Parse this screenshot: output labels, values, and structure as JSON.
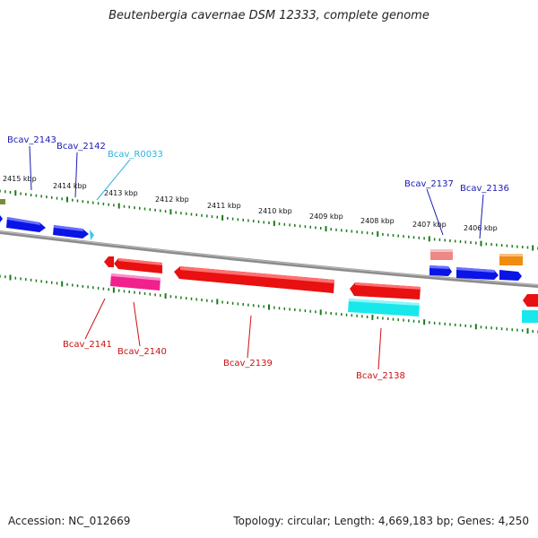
{
  "title": "Beutenbergia cavernae DSM 12333, complete genome",
  "footer": {
    "accession": "Accession: NC_012669",
    "summary": "Topology: circular; Length: 4,669,183 bp; Genes: 4,250"
  },
  "kbp_ticks": [
    "2415 kbp",
    "2414 kbp",
    "2413 kbp",
    "2412 kbp",
    "2411 kbp",
    "2410 kbp",
    "2409 kbp",
    "2408 kbp",
    "2407 kbp",
    "2406 kbp"
  ],
  "gene_labels": {
    "top": [
      "Bcav_2143",
      "Bcav_2142",
      "Bcav_R0033",
      "Bcav_2137",
      "Bcav_2136"
    ],
    "bottom": [
      "Bcav_2141",
      "Bcav_2140",
      "Bcav_2139",
      "Bcav_2138"
    ]
  },
  "colors": {
    "backbone": "#8c8c8c",
    "tick": "#1a7a1a",
    "forward_gene": "#0a14e6",
    "rrna": "#36c8f0",
    "reverse_gene": "#e81010",
    "magenta": "#f0208c",
    "cyan": "#18e8ec",
    "salmon": "#ee8888",
    "orange": "#f08c10",
    "label_blue": "#1a1ab4",
    "label_cyan": "#2ab4dc",
    "label_red": "#cc1010"
  }
}
